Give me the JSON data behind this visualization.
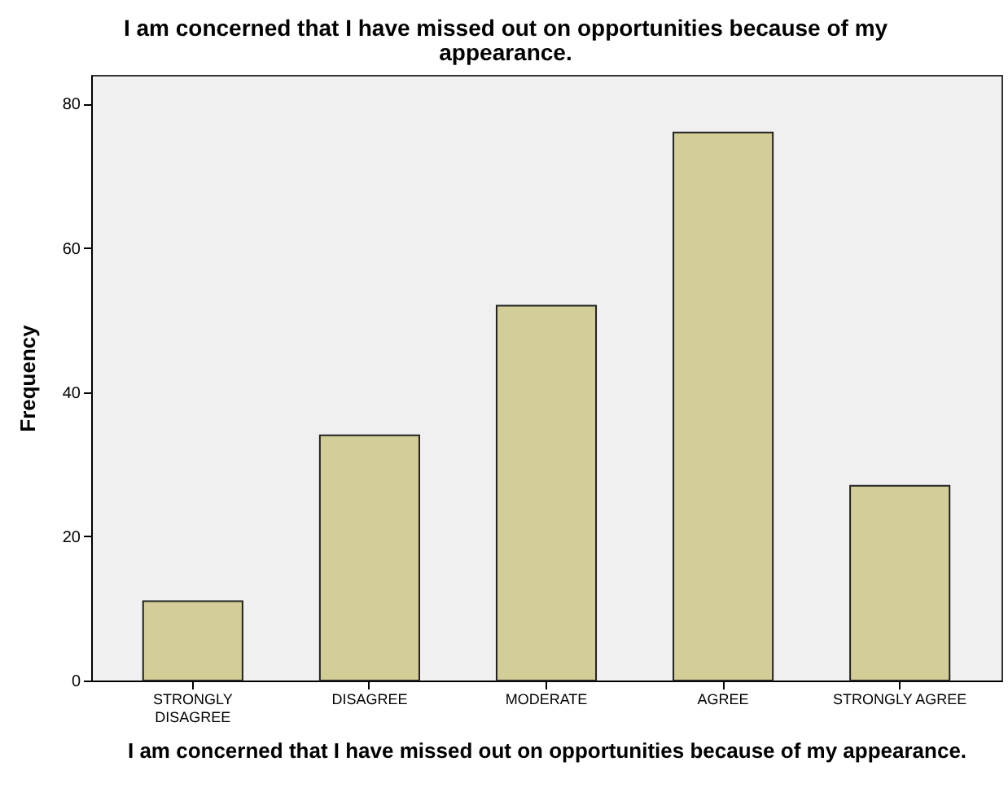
{
  "chart_data": {
    "type": "bar",
    "title": "I am concerned that I have missed out on opportunities because of my appearance.",
    "xlabel": "I am concerned that I have missed out on opportunities because of my appearance.",
    "ylabel": "Frequency",
    "categories": [
      "STRONGLY DISAGREE",
      "DISAGREE",
      "MODERATE",
      "AGREE",
      "STRONGLY AGREE"
    ],
    "values": [
      11,
      34,
      52,
      76,
      27
    ],
    "color": "#d3ce97",
    "ylim": [
      0,
      84
    ],
    "yticks": [
      0,
      20,
      40,
      60,
      80
    ],
    "grid": false
  }
}
